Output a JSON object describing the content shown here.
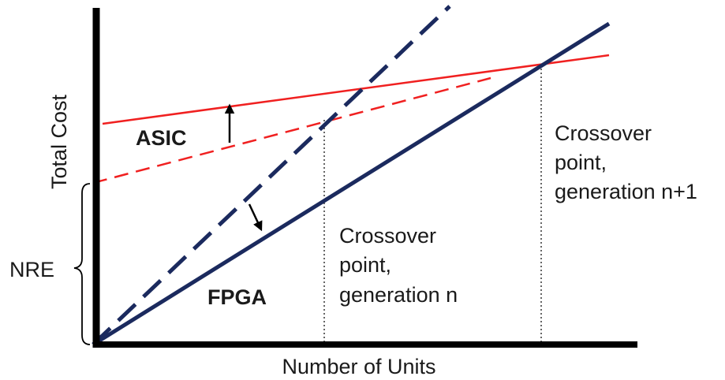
{
  "axes": {
    "x_label": "Number of Units",
    "y_label": "Total Cost"
  },
  "curves": {
    "asic": "ASIC",
    "fpga": "FPGA"
  },
  "nre": "NRE",
  "crossovers": [
    {
      "lines": [
        "Crossover",
        "point,",
        "generation n"
      ]
    },
    {
      "lines": [
        "Crossover",
        "point,",
        "generation n+1"
      ]
    }
  ]
}
